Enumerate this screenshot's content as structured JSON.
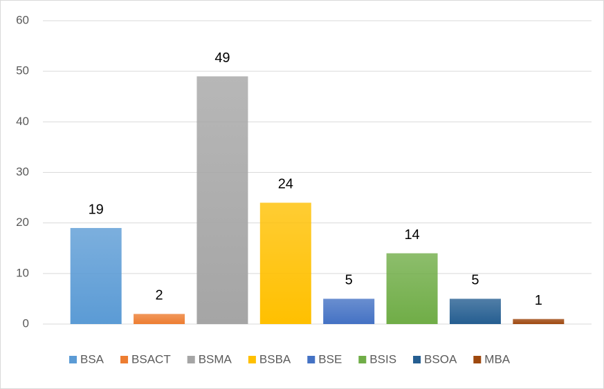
{
  "chart_data": {
    "type": "bar",
    "series": [
      {
        "name": "BSA",
        "color": "#5b9bd5",
        "values": [
          19
        ]
      },
      {
        "name": "BSACT",
        "color": "#ed7d31",
        "values": [
          2
        ]
      },
      {
        "name": "BSMA",
        "color": "#a5a5a5",
        "values": [
          49
        ]
      },
      {
        "name": "BSBA",
        "color": "#ffc000",
        "values": [
          24
        ]
      },
      {
        "name": "BSE",
        "color": "#4472c4",
        "values": [
          5
        ]
      },
      {
        "name": "BSIS",
        "color": "#70ad47",
        "values": [
          14
        ]
      },
      {
        "name": "BSOA",
        "color": "#255e91",
        "values": [
          5
        ]
      },
      {
        "name": "MBA",
        "color": "#9e480e",
        "values": [
          1
        ]
      }
    ],
    "ylim": [
      0,
      60
    ],
    "yticks": [
      0,
      10,
      20,
      30,
      40,
      50,
      60
    ],
    "grid": true,
    "legend": "bottom"
  }
}
